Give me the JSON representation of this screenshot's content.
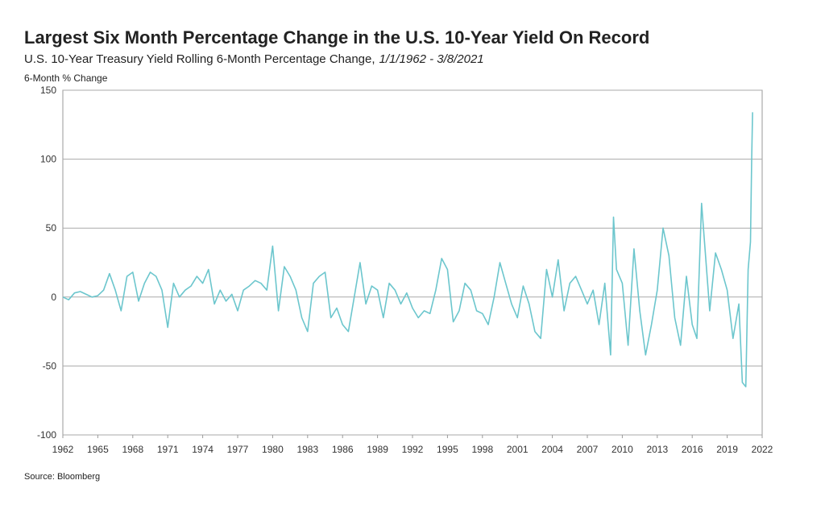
{
  "chart_data": {
    "type": "line",
    "title": "Largest Six Month Percentage Change in the U.S. 10-Year Yield On Record",
    "subtitle": "U.S. 10-Year Treasury Yield Rolling 6-Month Percentage Change,",
    "subtitle_dates": "1/1/1962 - 3/8/2021",
    "y_label": "6-Month % Change",
    "source": "Source: Bloomberg",
    "color": "#6cc6cd",
    "grid": true,
    "xlim": [
      1962,
      2022
    ],
    "xticks": [
      1962,
      1965,
      1968,
      1971,
      1974,
      1977,
      1980,
      1983,
      1986,
      1989,
      1992,
      1995,
      1998,
      2001,
      2004,
      2007,
      2010,
      2013,
      2016,
      2019,
      2022
    ],
    "ylim": [
      -100,
      150
    ],
    "yticks": [
      -100,
      -50,
      0,
      50,
      100,
      150
    ],
    "x": [
      1962,
      1962.5,
      1963,
      1963.5,
      1964,
      1964.5,
      1965,
      1965.5,
      1966,
      1966.5,
      1967,
      1967.5,
      1968,
      1968.5,
      1969,
      1969.5,
      1970,
      1970.5,
      1971,
      1971.5,
      1972,
      1972.5,
      1973,
      1973.5,
      1974,
      1974.5,
      1975,
      1975.5,
      1976,
      1976.5,
      1977,
      1977.5,
      1978,
      1978.5,
      1979,
      1979.5,
      1980,
      1980.5,
      1981,
      1981.5,
      1982,
      1982.5,
      1983,
      1983.5,
      1984,
      1984.5,
      1985,
      1985.5,
      1986,
      1986.5,
      1987,
      1987.5,
      1988,
      1988.5,
      1989,
      1989.5,
      1990,
      1990.5,
      1991,
      1991.5,
      1992,
      1992.5,
      1993,
      1993.5,
      1994,
      1994.5,
      1995,
      1995.5,
      1996,
      1996.5,
      1997,
      1997.5,
      1998,
      1998.5,
      1999,
      1999.5,
      2000,
      2000.5,
      2001,
      2001.5,
      2002,
      2002.5,
      2003,
      2003.5,
      2004,
      2004.5,
      2005,
      2005.5,
      2006,
      2006.5,
      2007,
      2007.5,
      2008,
      2008.5,
      2009,
      2009.25,
      2009.5,
      2010,
      2010.5,
      2011,
      2011.5,
      2012,
      2012.5,
      2013,
      2013.5,
      2014,
      2014.5,
      2015,
      2015.5,
      2016,
      2016.4,
      2016.8,
      2017.5,
      2018,
      2018.5,
      2019,
      2019.5,
      2020,
      2020.3,
      2020.6,
      2020.8,
      2021,
      2021.1,
      2021.18
    ],
    "values": [
      0,
      -2,
      3,
      4,
      2,
      0,
      1,
      5,
      17,
      5,
      -10,
      15,
      18,
      -3,
      10,
      18,
      15,
      5,
      -22,
      10,
      0,
      5,
      8,
      15,
      10,
      20,
      -5,
      5,
      -3,
      2,
      -10,
      5,
      8,
      12,
      10,
      5,
      37,
      -10,
      22,
      15,
      5,
      -15,
      -25,
      10,
      15,
      18,
      -15,
      -8,
      -20,
      -25,
      0,
      25,
      -5,
      8,
      5,
      -15,
      10,
      5,
      -5,
      3,
      -8,
      -15,
      -10,
      -12,
      5,
      28,
      20,
      -18,
      -10,
      10,
      5,
      -10,
      -12,
      -20,
      0,
      25,
      10,
      -5,
      -15,
      8,
      -5,
      -25,
      -30,
      20,
      0,
      27,
      -10,
      10,
      15,
      5,
      -5,
      5,
      -20,
      10,
      -42,
      58,
      20,
      10,
      -35,
      35,
      -10,
      -42,
      -20,
      5,
      50,
      30,
      -15,
      -35,
      15,
      -20,
      -30,
      68,
      -10,
      32,
      20,
      5,
      -30,
      -5,
      -62,
      -65,
      20,
      40,
      100,
      134
    ]
  }
}
